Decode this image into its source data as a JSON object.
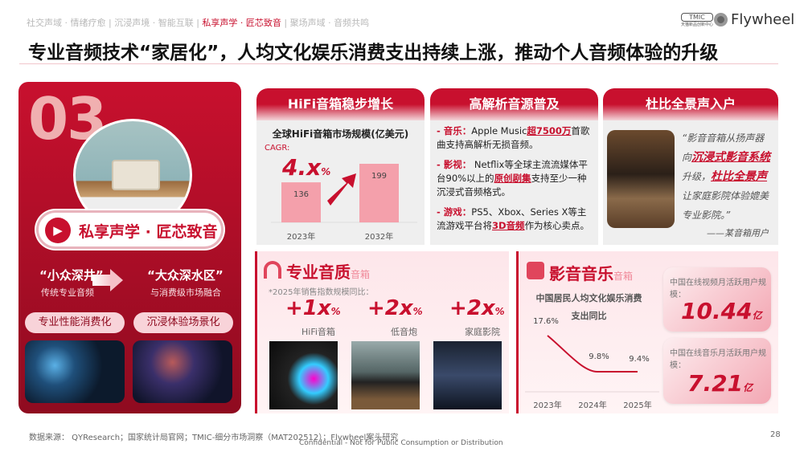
{
  "nav": {
    "items": [
      "社交声域 · 情绪疗愈",
      "沉浸声境 · 智能互联",
      "私享声学 · 匠芯致音",
      "聚场声域 · 音频共鸣"
    ],
    "active_index": 2,
    "separator": " | "
  },
  "title": "专业音频技术“家居化”，人均文化娱乐消费支出持续上涨，推动个人音频体验的升级",
  "logos": {
    "tmic": "TMIC",
    "tmic_sub": "天猫新品创新中心",
    "flywheel": "Flywheel"
  },
  "left": {
    "number": "03",
    "pill": "私享声学 · 匠芯致音",
    "from_title": "“小众深井”",
    "from_sub": "传统专业音频",
    "to_title": "“大众深水区”",
    "to_sub": "与消费级市场融合",
    "tags": [
      "专业性能消费化",
      "沉浸体验场景化"
    ]
  },
  "hifi": {
    "header": "HiFi音箱稳步增长",
    "chart_title": "全球HiFi音箱市场规模(亿美元)",
    "cagr_label": "CAGR:",
    "cagr_value": "4.x",
    "cagr_unit": "%"
  },
  "hires": {
    "header": "高解析音源普及",
    "items": [
      {
        "label": "- 音乐：",
        "pre": "Apple Music",
        "hl": "超7500万",
        "post": "首歌曲支持高解析无损音频。"
      },
      {
        "label": "- 影视：",
        "pre": " Netflix等全球主流流媒体平台90%以上的",
        "hl": "原创剧集",
        "post": "支持至少一种沉浸式音频格式。"
      },
      {
        "label": "- 游戏：",
        "pre": "PS5、Xbox、Series X等主流游戏平台将",
        "hl": "3D音频",
        "post": "作为核心卖点。"
      }
    ]
  },
  "dolby": {
    "header": "杜比全景声入户",
    "q1": "“影音音箱从扬声器向",
    "h1": "沉浸式影音系统",
    "q2": "升级，",
    "h2": "杜比全景声",
    "q3": "让家庭影院体验媲美专业影院。”",
    "author": "——某音箱用户"
  },
  "pro": {
    "title": "专业音质",
    "suffix": "音箱",
    "note": "*2025年销售指数规模同比：",
    "stats": [
      {
        "value": "+1x",
        "unit": "%",
        "label": "HiFi音箱"
      },
      {
        "value": "+2x",
        "unit": "%",
        "label": "低音炮"
      },
      {
        "value": "+2x",
        "unit": "%",
        "label": "家庭影院"
      }
    ]
  },
  "av": {
    "title": "影音音乐",
    "suffix": "音箱",
    "chart_title": "中国居民人均文化娱乐消费支出同比",
    "boxes": [
      {
        "label": "中国在线视频月活跃用户规模：",
        "value": "10.44",
        "unit": "亿"
      },
      {
        "label": "中国在线音乐月活跃用户规模：",
        "value": "7.21",
        "unit": "亿"
      }
    ]
  },
  "chart_data": [
    {
      "type": "bar",
      "title": "全球HiFi音箱市场规模(亿美元)",
      "categories": [
        "2023年",
        "2032年"
      ],
      "values": [
        136,
        199
      ],
      "ylim": [
        0,
        199
      ],
      "color": "#f4a0ab"
    },
    {
      "type": "line",
      "title": "中国居民人均文化娱乐消费支出同比",
      "categories": [
        "2023年",
        "2024年",
        "2025年"
      ],
      "values": [
        17.6,
        9.8,
        9.4
      ],
      "labels": [
        "17.6%",
        "9.8%",
        "9.4%"
      ],
      "color": "#c8102e"
    }
  ],
  "footer": {
    "source": "数据来源： QYResearch；国家统计局官网；TMIC-细分市场洞察（MAT202512）；Flywheel案头研究",
    "confidential": "Confidential - Not for Public Consumption or Distribution",
    "page": "28"
  },
  "colors": {
    "brand": "#c8102e",
    "dark": "#8f0b20",
    "pink": "#f4a0ab"
  }
}
